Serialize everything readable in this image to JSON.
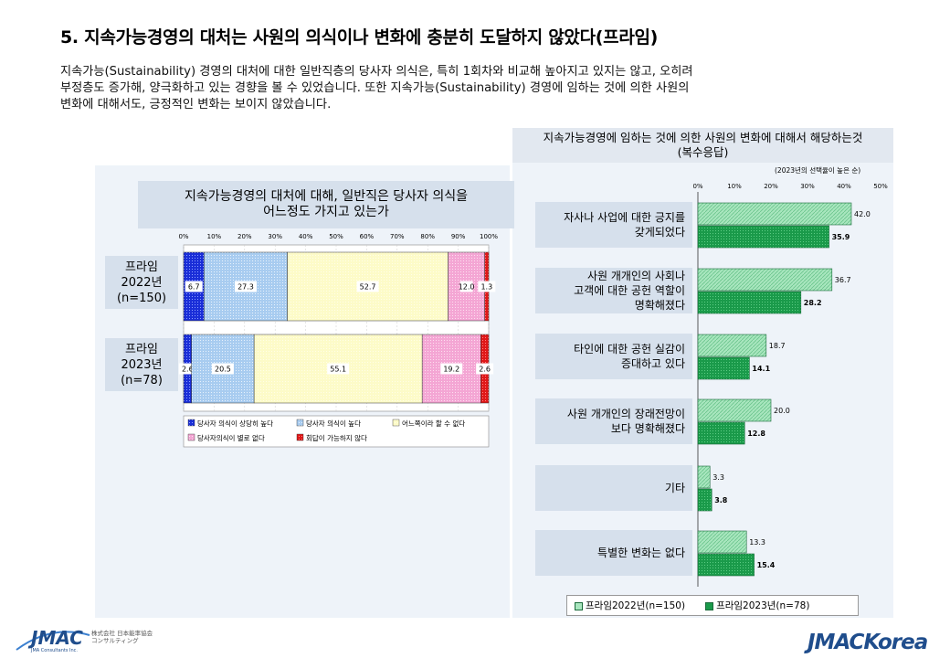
{
  "page": {
    "title": "5. 지속가능경영의 대처는 사원의 의식이나 변화에 충분히 도달하지 않았다(프라임)",
    "description_lines": [
      "지속가능(Sustainability) 경영의 대처에 대한 일반직층의 당사자 의식은, 특히 1회차와 비교해 높아지고 있지는 않고, 오히려",
      "부정층도 증가해,  양극화하고 있는 경향을 볼 수 있었습니다.  또한 지속가능(Sustainability) 경영에 임하는 것에 의한 사원의",
      "변화에 대해서도, 긍정적인 변화는 보이지 않았습니다."
    ],
    "footer_left": {
      "logo": "JMAC",
      "subtitle": "JMA Consultants Inc.",
      "jp_line1": "株式会社 日本能率協会",
      "jp_line2": "コンサルティング"
    },
    "footer_right": "JMACKorea"
  },
  "left_chart": {
    "question_lines": [
      "지속가능경영의 대처에 대해, 일반직은 당사자 의식을",
      "어느정도 가지고 있는가"
    ],
    "row_labels": [
      [
        "프라임",
        "2022년",
        "(n=150)"
      ],
      [
        "프라임",
        "2023년",
        "(n=78)"
      ]
    ]
  },
  "right_chart": {
    "title_lines": [
      "지속가능경영에 임하는 것에 의한 사원의 변화에 대해서 해당하는것",
      "(복수응답)"
    ],
    "sort_note": "(2023년의 선택율이 높은 순)",
    "category_lines": [
      [
        "자사나 사업에 대한 긍지를",
        "갖게되었다"
      ],
      [
        "사원 개개인의 사회나",
        "고객에 대한 공헌 역할이",
        "명확해졌다"
      ],
      [
        "타인에 대한 공헌 실감이",
        "증대하고 있다"
      ],
      [
        "사원 개개인의 장래전망이",
        "보다 명확해졌다"
      ],
      [
        "기타"
      ],
      [
        "특별한 변화는 없다"
      ]
    ],
    "legend": [
      "프라임2022년(n=150)",
      "프라임2023년(n=78)"
    ]
  },
  "chart_data": [
    {
      "type": "bar",
      "orientation": "horizontal-stacked-100",
      "categories": [
        "프라임 2022년 (n=150)",
        "프라임 2023년 (n=78)"
      ],
      "x_ticks": [
        "0%",
        "10%",
        "20%",
        "30%",
        "40%",
        "50%",
        "60%",
        "70%",
        "80%",
        "90%",
        "100%"
      ],
      "xlim": [
        0,
        100
      ],
      "series": [
        {
          "name": "당사자 의식이 상당히 높다",
          "values": [
            6.7,
            2.6
          ],
          "color": "#1a2ed8"
        },
        {
          "name": "당사자 의식이 높다",
          "values": [
            27.3,
            20.5
          ],
          "color": "#a8ccf0"
        },
        {
          "name": "어느쪽이라 할 수 없다",
          "values": [
            52.7,
            55.1
          ],
          "color": "#fdfbc8"
        },
        {
          "name": "당사자의식이 별로 없다",
          "values": [
            12.0,
            19.2
          ],
          "color": "#f4a6d4"
        },
        {
          "name": "회답이 가능하지 않다",
          "values": [
            1.3,
            2.6
          ],
          "color": "#e01818"
        }
      ],
      "legend": "bottom"
    },
    {
      "type": "bar",
      "orientation": "horizontal-grouped",
      "categories": [
        "자사나 사업에 대한 긍지를 갖게되었다",
        "사원 개개인의 사회나 고객에 대한 공헌 역할이 명확해졌다",
        "타인에 대한 공헌 실감이 증대하고 있다",
        "사원 개개인의 장래전망이 보다 명확해졌다",
        "기타",
        "특별한 변화는 없다"
      ],
      "x_ticks": [
        "0%",
        "10%",
        "20%",
        "30%",
        "40%",
        "50%"
      ],
      "xlim": [
        0,
        50
      ],
      "series": [
        {
          "name": "프라임2022년(n=150)",
          "values": [
            42.0,
            36.7,
            18.7,
            20.0,
            3.3,
            13.3
          ],
          "color": "#a8e6be"
        },
        {
          "name": "프라임2023년(n=78)",
          "values": [
            35.9,
            28.2,
            14.1,
            12.8,
            3.8,
            15.4
          ],
          "color": "#1a9a4a"
        }
      ],
      "legend": "bottom"
    }
  ]
}
